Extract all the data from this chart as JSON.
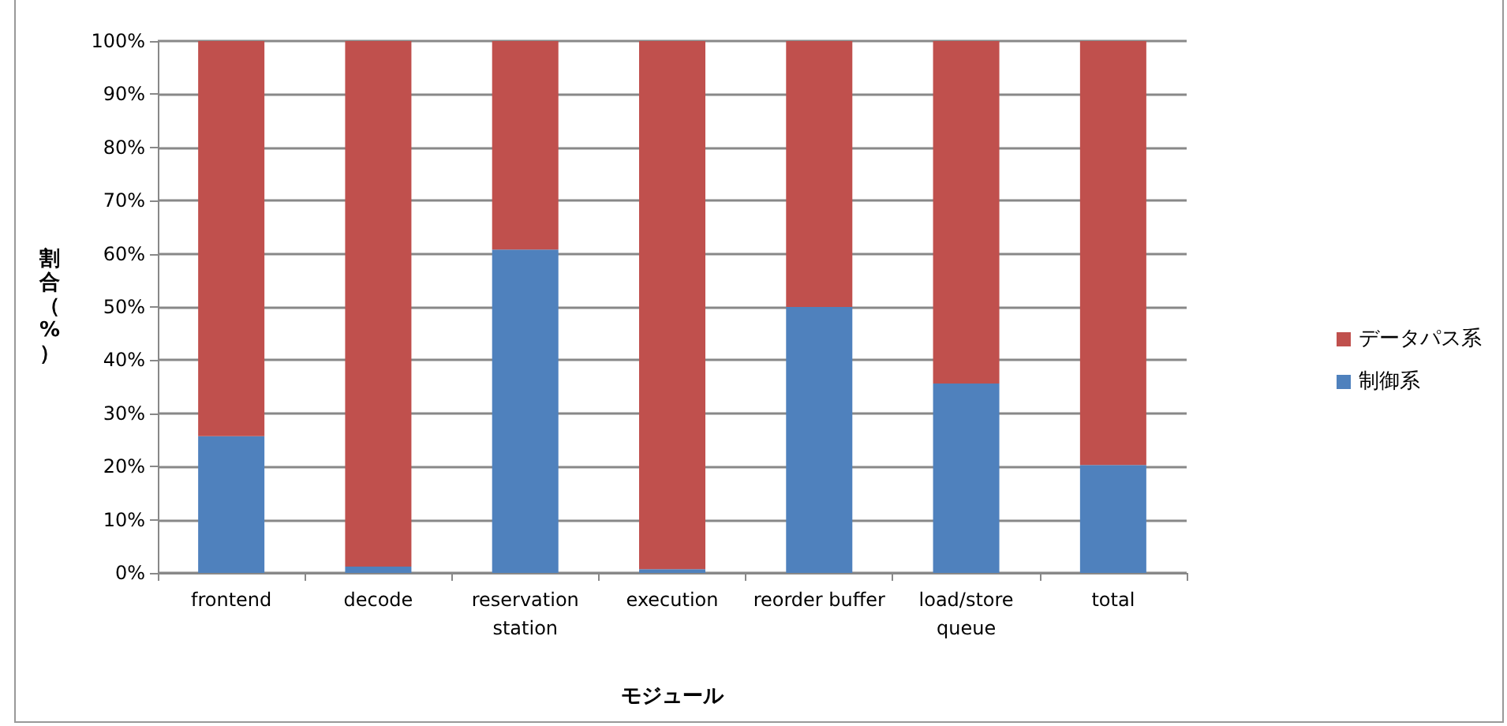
{
  "chart_data": {
    "type": "bar",
    "stacked": true,
    "xlabel": "モジュール",
    "ylabel": "割合（%）",
    "categories": [
      "frontend",
      "decode",
      "reservation\nstation",
      "execution",
      "reorder buffer",
      "load/store\nqueue",
      "total"
    ],
    "series": [
      {
        "name": "制御系",
        "color": "#4f81bd",
        "values": [
          25.7,
          1.2,
          60.8,
          0.7,
          50,
          35.6,
          20.3
        ]
      },
      {
        "name": "データパス系",
        "color": "#c0504d",
        "values": [
          74.3,
          98.8,
          39.2,
          99.3,
          50,
          64.4,
          79.7
        ]
      }
    ],
    "ylim": [
      0,
      100
    ],
    "yticks": [
      {
        "value": 0,
        "label": "0%"
      },
      {
        "value": 10,
        "label": "10%"
      },
      {
        "value": 20,
        "label": "20%"
      },
      {
        "value": 30,
        "label": "30%"
      },
      {
        "value": 40,
        "label": "40%"
      },
      {
        "value": 50,
        "label": "50%"
      },
      {
        "value": 60,
        "label": "60%"
      },
      {
        "value": 70,
        "label": "70%"
      },
      {
        "value": 80,
        "label": "80%"
      },
      {
        "value": 90,
        "label": "90%"
      },
      {
        "value": 100,
        "label": "100%"
      }
    ],
    "grid": "y",
    "legend": "right"
  }
}
